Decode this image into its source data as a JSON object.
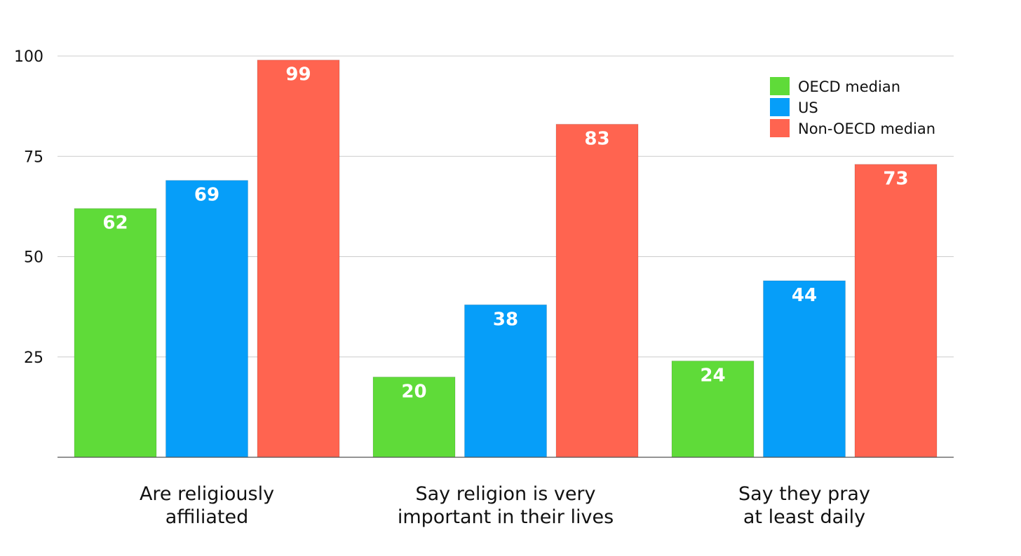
{
  "chart_data": {
    "type": "bar",
    "title": "",
    "xlabel": "",
    "ylabel": "",
    "ylim": [
      0,
      100
    ],
    "yticks": [
      25,
      50,
      75,
      100
    ],
    "grid": true,
    "legend_position": "top-right",
    "categories": [
      [
        "Are religiously",
        "affiliated"
      ],
      [
        "Say religion is very",
        "important in their lives"
      ],
      [
        "Say they pray",
        "at least daily"
      ]
    ],
    "series": [
      {
        "name": "OECD median",
        "color": "#5fdb39",
        "values": [
          62,
          20,
          24
        ]
      },
      {
        "name": "US",
        "color": "#069ef9",
        "values": [
          69,
          38,
          44
        ]
      },
      {
        "name": "Non-OECD median",
        "color": "#ff6450",
        "values": [
          99,
          83,
          73
        ]
      }
    ]
  }
}
